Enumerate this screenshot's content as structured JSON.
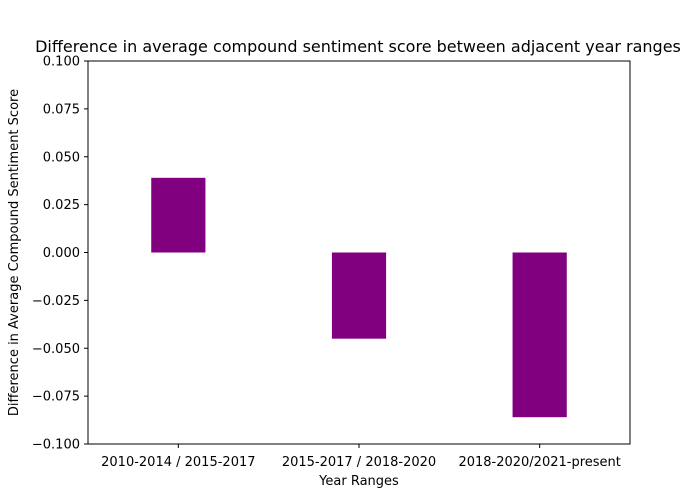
{
  "chart_data": {
    "type": "bar",
    "title": "Difference in average compound sentiment score between adjacent year ranges",
    "xlabel": "Year Ranges",
    "ylabel": "Difference in Average Compound Sentiment Score",
    "categories": [
      "2010-2014 / 2015-2017",
      "2015-2017 / 2018-2020",
      "2018-2020/2021-present"
    ],
    "values": [
      0.039,
      -0.045,
      -0.086
    ],
    "ylim": [
      -0.1,
      0.1
    ],
    "yticks": [
      0.1,
      0.075,
      0.05,
      0.025,
      0.0,
      -0.025,
      -0.05,
      -0.075,
      -0.1
    ],
    "ytick_labels": [
      "0.100",
      "0.075",
      "0.050",
      "0.025",
      "0.000",
      "−0.025",
      "−0.050",
      "−0.075",
      "−0.100"
    ],
    "bar_color": "#800080",
    "grid": false,
    "legend": "none"
  }
}
